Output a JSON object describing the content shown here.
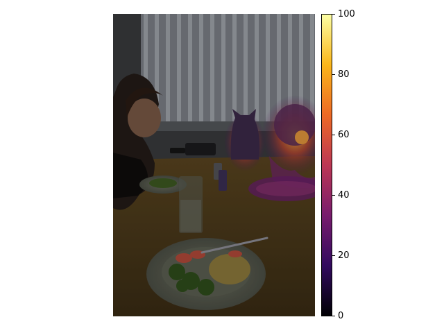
{
  "image": {
    "description_icon": "dinner-scene-photo-with-saliency-overlay",
    "overlay_colormap": "inferno"
  },
  "colorbar": {
    "ticks": [
      "0",
      "20",
      "40",
      "60",
      "80",
      "100"
    ],
    "colors": [
      "#000004",
      "#320a5e",
      "#781c6d",
      "#bc3754",
      "#ed6925",
      "#fbb61a",
      "#fcffa4"
    ]
  }
}
